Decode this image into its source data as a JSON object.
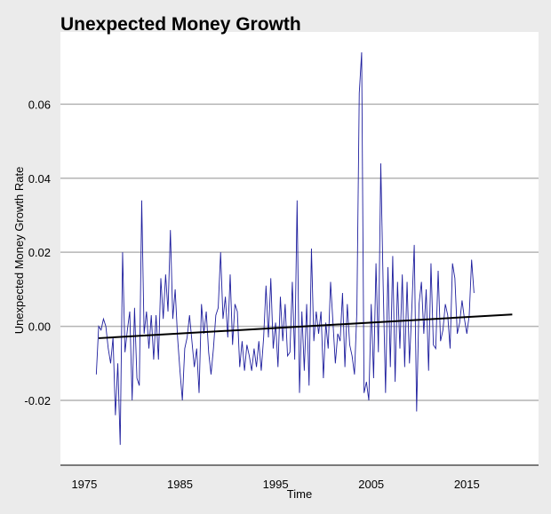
{
  "chart_data": {
    "type": "line",
    "title": "Unexpected Money Growth",
    "xlabel": "Time",
    "ylabel": "Unexpected Money Growth Rate",
    "xlim": [
      1972.5,
      2022.5
    ],
    "ylim": [
      -0.0375,
      0.0795
    ],
    "x_ticks": [
      1975,
      1985,
      1995,
      2005,
      2015
    ],
    "y_ticks": [
      -0.02,
      0.0,
      0.02,
      0.04,
      0.06
    ],
    "y_tick_labels": [
      "-0.02",
      "0.00",
      "0.02",
      "0.04",
      "0.06"
    ],
    "grid": "horizontal",
    "legend": "none",
    "colors": {
      "series": "#1f1f9e",
      "trend": "#000000",
      "panel": "#ffffff",
      "background": "#ebebeb",
      "grid": "#b4b4b4"
    },
    "series": [
      {
        "role": "data",
        "x_start": 1976.25,
        "x_step": 0.25,
        "values": [
          -0.013,
          0.0,
          -0.001,
          0.002,
          0.0,
          -0.006,
          -0.01,
          -0.003,
          -0.024,
          -0.01,
          -0.032,
          0.02,
          -0.007,
          -0.001,
          0.004,
          -0.02,
          0.005,
          -0.014,
          -0.016,
          0.034,
          -0.002,
          0.004,
          -0.006,
          0.003,
          -0.009,
          0.003,
          -0.009,
          0.013,
          0.002,
          0.014,
          0.004,
          0.026,
          0.002,
          0.01,
          -0.003,
          -0.012,
          -0.02,
          -0.006,
          -0.003,
          0.003,
          -0.004,
          -0.011,
          -0.006,
          -0.018,
          0.006,
          -0.002,
          0.004,
          -0.007,
          -0.013,
          -0.006,
          0.003,
          0.005,
          0.02,
          0.002,
          0.008,
          -0.003,
          0.014,
          -0.005,
          0.006,
          0.004,
          -0.011,
          -0.004,
          -0.012,
          -0.005,
          -0.008,
          -0.012,
          -0.006,
          -0.011,
          -0.004,
          -0.012,
          -0.003,
          0.011,
          -0.003,
          0.013,
          -0.006,
          0.001,
          -0.011,
          0.008,
          -0.004,
          0.006,
          -0.008,
          -0.007,
          0.012,
          -0.009,
          0.034,
          -0.018,
          0.004,
          -0.012,
          0.006,
          -0.016,
          0.021,
          -0.004,
          0.004,
          -0.002,
          0.004,
          -0.014,
          0.001,
          -0.006,
          0.012,
          0.001,
          -0.01,
          -0.002,
          -0.004,
          0.009,
          -0.011,
          0.006,
          -0.005,
          -0.008,
          -0.013,
          0.004,
          0.063,
          0.074,
          -0.018,
          -0.015,
          -0.02,
          0.006,
          -0.014,
          0.017,
          -0.007,
          0.044,
          0.011,
          -0.018,
          0.016,
          -0.011,
          0.019,
          -0.015,
          0.012,
          -0.006,
          0.014,
          -0.011,
          0.012,
          -0.01,
          0.005,
          0.022,
          -0.023,
          0.006,
          0.012,
          -0.002,
          0.01,
          -0.012,
          0.017,
          -0.005,
          -0.006,
          0.015,
          -0.004,
          -0.001,
          0.006,
          0.003,
          -0.006,
          0.017,
          0.013,
          -0.002,
          0.001,
          0.007,
          0.002,
          -0.002,
          0.003,
          0.018,
          0.009
        ]
      },
      {
        "role": "trend",
        "x": [
          1976.5,
          2019.75
        ],
        "values": [
          -0.0032,
          0.0032
        ]
      }
    ]
  }
}
